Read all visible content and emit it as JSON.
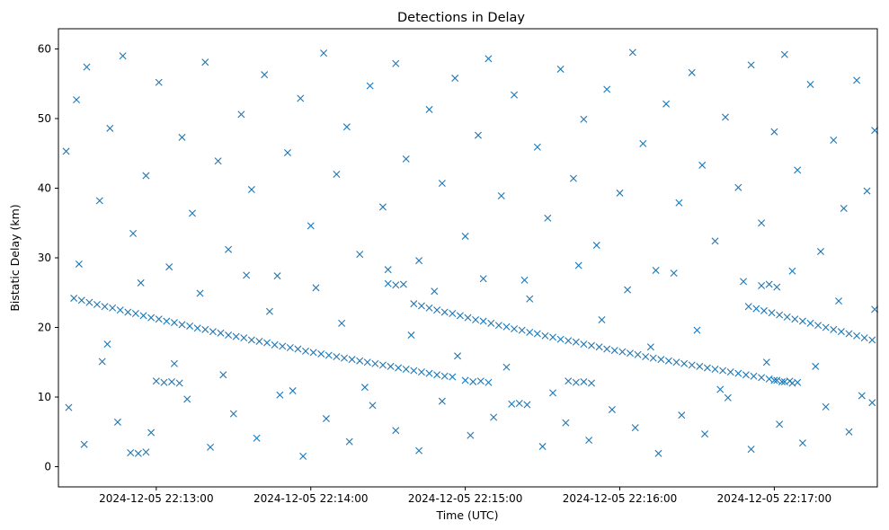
{
  "chart_data": {
    "type": "scatter",
    "title": "Detections in Delay",
    "xlabel": "Time (UTC)",
    "ylabel": "Bistatic Delay (km)",
    "marker": "x",
    "color": "#1f77b4",
    "grid": false,
    "x_axis_type": "time",
    "x_range": [
      "2024-12-05 22:12:22",
      "2024-12-05 22:17:40"
    ],
    "ylim": [
      -2.9,
      62.9
    ],
    "x_ticks": [
      "2024-12-05 22:13:00",
      "2024-12-05 22:14:00",
      "2024-12-05 22:15:00",
      "2024-12-05 22:16:00",
      "2024-12-05 22:17:00"
    ],
    "y_ticks": [
      0,
      10,
      20,
      30,
      40,
      50,
      60
    ],
    "note_on_points": "Points listed are a representative reading of the dense detection cloud; x values are times (UTC).",
    "points": [
      [
        "2024-12-05 22:12:28",
        24.2
      ],
      [
        "2024-12-05 22:12:31",
        23.9
      ],
      [
        "2024-12-05 22:12:34",
        23.6
      ],
      [
        "2024-12-05 22:12:37",
        23.3
      ],
      [
        "2024-12-05 22:12:40",
        23.0
      ],
      [
        "2024-12-05 22:12:43",
        22.8
      ],
      [
        "2024-12-05 22:12:46",
        22.5
      ],
      [
        "2024-12-05 22:12:49",
        22.2
      ],
      [
        "2024-12-05 22:12:52",
        22.0
      ],
      [
        "2024-12-05 22:12:55",
        21.7
      ],
      [
        "2024-12-05 22:12:58",
        21.4
      ],
      [
        "2024-12-05 22:13:01",
        21.2
      ],
      [
        "2024-12-05 22:13:04",
        20.9
      ],
      [
        "2024-12-05 22:13:07",
        20.7
      ],
      [
        "2024-12-05 22:13:10",
        20.4
      ],
      [
        "2024-12-05 22:13:13",
        20.2
      ],
      [
        "2024-12-05 22:13:16",
        19.9
      ],
      [
        "2024-12-05 22:13:19",
        19.7
      ],
      [
        "2024-12-05 22:13:22",
        19.4
      ],
      [
        "2024-12-05 22:13:25",
        19.2
      ],
      [
        "2024-12-05 22:13:28",
        18.9
      ],
      [
        "2024-12-05 22:13:31",
        18.7
      ],
      [
        "2024-12-05 22:13:34",
        18.5
      ],
      [
        "2024-12-05 22:13:37",
        18.2
      ],
      [
        "2024-12-05 22:13:40",
        18.0
      ],
      [
        "2024-12-05 22:13:43",
        17.8
      ],
      [
        "2024-12-05 22:13:46",
        17.5
      ],
      [
        "2024-12-05 22:13:49",
        17.3
      ],
      [
        "2024-12-05 22:13:52",
        17.1
      ],
      [
        "2024-12-05 22:13:55",
        16.9
      ],
      [
        "2024-12-05 22:13:58",
        16.6
      ],
      [
        "2024-12-05 22:14:01",
        16.4
      ],
      [
        "2024-12-05 22:14:04",
        16.2
      ],
      [
        "2024-12-05 22:14:07",
        16.0
      ],
      [
        "2024-12-05 22:14:10",
        15.8
      ],
      [
        "2024-12-05 22:14:13",
        15.6
      ],
      [
        "2024-12-05 22:14:16",
        15.4
      ],
      [
        "2024-12-05 22:14:19",
        15.2
      ],
      [
        "2024-12-05 22:14:22",
        15.0
      ],
      [
        "2024-12-05 22:14:25",
        14.8
      ],
      [
        "2024-12-05 22:14:28",
        14.6
      ],
      [
        "2024-12-05 22:14:31",
        14.4
      ],
      [
        "2024-12-05 22:14:34",
        14.2
      ],
      [
        "2024-12-05 22:14:37",
        14.0
      ],
      [
        "2024-12-05 22:14:40",
        13.8
      ],
      [
        "2024-12-05 22:14:43",
        13.6
      ],
      [
        "2024-12-05 22:14:46",
        13.4
      ],
      [
        "2024-12-05 22:14:49",
        13.2
      ],
      [
        "2024-12-05 22:14:52",
        13.0
      ],
      [
        "2024-12-05 22:14:55",
        12.9
      ],
      [
        "2024-12-05 22:14:40",
        23.4
      ],
      [
        "2024-12-05 22:14:43",
        23.1
      ],
      [
        "2024-12-05 22:14:46",
        22.8
      ],
      [
        "2024-12-05 22:14:49",
        22.5
      ],
      [
        "2024-12-05 22:14:52",
        22.2
      ],
      [
        "2024-12-05 22:14:55",
        22.0
      ],
      [
        "2024-12-05 22:14:58",
        21.7
      ],
      [
        "2024-12-05 22:15:01",
        21.4
      ],
      [
        "2024-12-05 22:15:04",
        21.1
      ],
      [
        "2024-12-05 22:15:07",
        20.9
      ],
      [
        "2024-12-05 22:15:10",
        20.6
      ],
      [
        "2024-12-05 22:15:13",
        20.3
      ],
      [
        "2024-12-05 22:15:16",
        20.1
      ],
      [
        "2024-12-05 22:15:19",
        19.8
      ],
      [
        "2024-12-05 22:15:22",
        19.6
      ],
      [
        "2024-12-05 22:15:25",
        19.3
      ],
      [
        "2024-12-05 22:15:28",
        19.1
      ],
      [
        "2024-12-05 22:15:31",
        18.8
      ],
      [
        "2024-12-05 22:15:34",
        18.6
      ],
      [
        "2024-12-05 22:15:37",
        18.3
      ],
      [
        "2024-12-05 22:15:40",
        18.1
      ],
      [
        "2024-12-05 22:15:43",
        17.9
      ],
      [
        "2024-12-05 22:15:46",
        17.6
      ],
      [
        "2024-12-05 22:15:49",
        17.4
      ],
      [
        "2024-12-05 22:15:52",
        17.2
      ],
      [
        "2024-12-05 22:15:55",
        16.9
      ],
      [
        "2024-12-05 22:15:58",
        16.7
      ],
      [
        "2024-12-05 22:16:01",
        16.5
      ],
      [
        "2024-12-05 22:16:04",
        16.3
      ],
      [
        "2024-12-05 22:16:07",
        16.1
      ],
      [
        "2024-12-05 22:16:10",
        15.8
      ],
      [
        "2024-12-05 22:16:13",
        15.6
      ],
      [
        "2024-12-05 22:16:16",
        15.4
      ],
      [
        "2024-12-05 22:16:19",
        15.2
      ],
      [
        "2024-12-05 22:16:22",
        15.0
      ],
      [
        "2024-12-05 22:16:25",
        14.8
      ],
      [
        "2024-12-05 22:16:28",
        14.6
      ],
      [
        "2024-12-05 22:16:31",
        14.4
      ],
      [
        "2024-12-05 22:16:34",
        14.2
      ],
      [
        "2024-12-05 22:16:37",
        14.0
      ],
      [
        "2024-12-05 22:16:40",
        13.8
      ],
      [
        "2024-12-05 22:16:43",
        13.6
      ],
      [
        "2024-12-05 22:16:46",
        13.4
      ],
      [
        "2024-12-05 22:16:49",
        13.2
      ],
      [
        "2024-12-05 22:16:52",
        13.0
      ],
      [
        "2024-12-05 22:16:55",
        12.8
      ],
      [
        "2024-12-05 22:16:58",
        12.6
      ],
      [
        "2024-12-05 22:17:01",
        12.4
      ],
      [
        "2024-12-05 22:17:04",
        12.2
      ],
      [
        "2024-12-05 22:17:07",
        12.0
      ],
      [
        "2024-12-05 22:16:50",
        23.0
      ],
      [
        "2024-12-05 22:16:53",
        22.7
      ],
      [
        "2024-12-05 22:16:56",
        22.4
      ],
      [
        "2024-12-05 22:16:59",
        22.1
      ],
      [
        "2024-12-05 22:17:02",
        21.8
      ],
      [
        "2024-12-05 22:17:05",
        21.5
      ],
      [
        "2024-12-05 22:17:08",
        21.2
      ],
      [
        "2024-12-05 22:17:11",
        20.9
      ],
      [
        "2024-12-05 22:17:14",
        20.6
      ],
      [
        "2024-12-05 22:17:17",
        20.3
      ],
      [
        "2024-12-05 22:17:20",
        20.0
      ],
      [
        "2024-12-05 22:17:23",
        19.7
      ],
      [
        "2024-12-05 22:17:26",
        19.4
      ],
      [
        "2024-12-05 22:17:29",
        19.1
      ],
      [
        "2024-12-05 22:17:32",
        18.8
      ],
      [
        "2024-12-05 22:17:35",
        18.5
      ],
      [
        "2024-12-05 22:17:38",
        18.2
      ],
      [
        "2024-12-05 22:13:00",
        12.3
      ],
      [
        "2024-12-05 22:13:03",
        12.1
      ],
      [
        "2024-12-05 22:13:06",
        12.2
      ],
      [
        "2024-12-05 22:13:09",
        12.0
      ],
      [
        "2024-12-05 22:15:00",
        12.4
      ],
      [
        "2024-12-05 22:15:03",
        12.2
      ],
      [
        "2024-12-05 22:15:06",
        12.3
      ],
      [
        "2024-12-05 22:15:09",
        12.1
      ],
      [
        "2024-12-05 22:15:40",
        12.3
      ],
      [
        "2024-12-05 22:15:43",
        12.1
      ],
      [
        "2024-12-05 22:15:46",
        12.2
      ],
      [
        "2024-12-05 22:15:49",
        12.0
      ],
      [
        "2024-12-05 22:17:00",
        12.4
      ],
      [
        "2024-12-05 22:17:03",
        12.2
      ],
      [
        "2024-12-05 22:17:06",
        12.3
      ],
      [
        "2024-12-05 22:17:09",
        12.1
      ],
      [
        "2024-12-05 22:16:55",
        26.0
      ],
      [
        "2024-12-05 22:16:58",
        26.2
      ],
      [
        "2024-12-05 22:17:01",
        25.8
      ],
      [
        "2024-12-05 22:14:30",
        26.3
      ],
      [
        "2024-12-05 22:14:33",
        26.1
      ],
      [
        "2024-12-05 22:14:36",
        26.2
      ],
      [
        "2024-12-05 22:12:50",
        2.0
      ],
      [
        "2024-12-05 22:12:53",
        1.9
      ],
      [
        "2024-12-05 22:12:56",
        2.1
      ],
      [
        "2024-12-05 22:15:18",
        9.0
      ],
      [
        "2024-12-05 22:15:21",
        9.1
      ],
      [
        "2024-12-05 22:15:24",
        8.9
      ],
      [
        "2024-12-05 22:12:25",
        45.3
      ],
      [
        "2024-12-05 22:12:29",
        52.7
      ],
      [
        "2024-12-05 22:12:33",
        57.4
      ],
      [
        "2024-12-05 22:12:38",
        38.2
      ],
      [
        "2024-12-05 22:12:42",
        48.6
      ],
      [
        "2024-12-05 22:12:47",
        59.0
      ],
      [
        "2024-12-05 22:12:51",
        33.5
      ],
      [
        "2024-12-05 22:12:56",
        41.8
      ],
      [
        "2024-12-05 22:13:01",
        55.2
      ],
      [
        "2024-12-05 22:13:05",
        28.7
      ],
      [
        "2024-12-05 22:13:10",
        47.3
      ],
      [
        "2024-12-05 22:13:14",
        36.4
      ],
      [
        "2024-12-05 22:13:19",
        58.1
      ],
      [
        "2024-12-05 22:13:24",
        43.9
      ],
      [
        "2024-12-05 22:13:28",
        31.2
      ],
      [
        "2024-12-05 22:13:33",
        50.6
      ],
      [
        "2024-12-05 22:13:37",
        39.8
      ],
      [
        "2024-12-05 22:13:42",
        56.3
      ],
      [
        "2024-12-05 22:13:47",
        27.4
      ],
      [
        "2024-12-05 22:13:51",
        45.1
      ],
      [
        "2024-12-05 22:13:56",
        52.9
      ],
      [
        "2024-12-05 22:14:00",
        34.6
      ],
      [
        "2024-12-05 22:14:05",
        59.4
      ],
      [
        "2024-12-05 22:14:10",
        42.0
      ],
      [
        "2024-12-05 22:14:14",
        48.8
      ],
      [
        "2024-12-05 22:14:19",
        30.5
      ],
      [
        "2024-12-05 22:14:23",
        54.7
      ],
      [
        "2024-12-05 22:14:28",
        37.3
      ],
      [
        "2024-12-05 22:14:33",
        57.9
      ],
      [
        "2024-12-05 22:14:37",
        44.2
      ],
      [
        "2024-12-05 22:14:42",
        29.6
      ],
      [
        "2024-12-05 22:14:46",
        51.3
      ],
      [
        "2024-12-05 22:14:51",
        40.7
      ],
      [
        "2024-12-05 22:14:56",
        55.8
      ],
      [
        "2024-12-05 22:15:00",
        33.1
      ],
      [
        "2024-12-05 22:15:05",
        47.6
      ],
      [
        "2024-12-05 22:15:09",
        58.6
      ],
      [
        "2024-12-05 22:15:14",
        38.9
      ],
      [
        "2024-12-05 22:15:19",
        53.4
      ],
      [
        "2024-12-05 22:15:23",
        26.8
      ],
      [
        "2024-12-05 22:15:28",
        45.9
      ],
      [
        "2024-12-05 22:15:32",
        35.7
      ],
      [
        "2024-12-05 22:15:37",
        57.1
      ],
      [
        "2024-12-05 22:15:42",
        41.4
      ],
      [
        "2024-12-05 22:15:46",
        49.9
      ],
      [
        "2024-12-05 22:15:51",
        31.8
      ],
      [
        "2024-12-05 22:15:55",
        54.2
      ],
      [
        "2024-12-05 22:16:00",
        39.3
      ],
      [
        "2024-12-05 22:16:05",
        59.5
      ],
      [
        "2024-12-05 22:16:09",
        46.4
      ],
      [
        "2024-12-05 22:16:14",
        28.2
      ],
      [
        "2024-12-05 22:16:18",
        52.1
      ],
      [
        "2024-12-05 22:16:23",
        37.9
      ],
      [
        "2024-12-05 22:16:28",
        56.6
      ],
      [
        "2024-12-05 22:16:32",
        43.3
      ],
      [
        "2024-12-05 22:16:37",
        32.4
      ],
      [
        "2024-12-05 22:16:41",
        50.2
      ],
      [
        "2024-12-05 22:16:46",
        40.1
      ],
      [
        "2024-12-05 22:16:51",
        57.7
      ],
      [
        "2024-12-05 22:16:55",
        35.0
      ],
      [
        "2024-12-05 22:17:00",
        48.1
      ],
      [
        "2024-12-05 22:17:04",
        59.2
      ],
      [
        "2024-12-05 22:17:09",
        42.6
      ],
      [
        "2024-12-05 22:17:14",
        54.9
      ],
      [
        "2024-12-05 22:17:18",
        30.9
      ],
      [
        "2024-12-05 22:17:23",
        46.9
      ],
      [
        "2024-12-05 22:17:27",
        37.1
      ],
      [
        "2024-12-05 22:17:32",
        55.5
      ],
      [
        "2024-12-05 22:17:36",
        39.6
      ],
      [
        "2024-12-05 22:17:39",
        48.3
      ],
      [
        "2024-12-05 22:12:26",
        8.5
      ],
      [
        "2024-12-05 22:12:32",
        3.2
      ],
      [
        "2024-12-05 22:12:39",
        15.1
      ],
      [
        "2024-12-05 22:12:45",
        6.4
      ],
      [
        "2024-12-05 22:12:58",
        4.9
      ],
      [
        "2024-12-05 22:13:12",
        9.7
      ],
      [
        "2024-12-05 22:13:21",
        2.8
      ],
      [
        "2024-12-05 22:13:30",
        7.6
      ],
      [
        "2024-12-05 22:13:39",
        4.1
      ],
      [
        "2024-12-05 22:13:48",
        10.3
      ],
      [
        "2024-12-05 22:13:57",
        1.5
      ],
      [
        "2024-12-05 22:14:06",
        6.9
      ],
      [
        "2024-12-05 22:14:15",
        3.6
      ],
      [
        "2024-12-05 22:14:24",
        8.8
      ],
      [
        "2024-12-05 22:14:33",
        5.2
      ],
      [
        "2024-12-05 22:14:42",
        2.3
      ],
      [
        "2024-12-05 22:14:51",
        9.4
      ],
      [
        "2024-12-05 22:15:02",
        4.5
      ],
      [
        "2024-12-05 22:15:11",
        7.1
      ],
      [
        "2024-12-05 22:15:30",
        2.9
      ],
      [
        "2024-12-05 22:15:39",
        6.3
      ],
      [
        "2024-12-05 22:15:48",
        3.8
      ],
      [
        "2024-12-05 22:15:57",
        8.2
      ],
      [
        "2024-12-05 22:16:06",
        5.6
      ],
      [
        "2024-12-05 22:16:15",
        1.9
      ],
      [
        "2024-12-05 22:16:24",
        7.4
      ],
      [
        "2024-12-05 22:16:33",
        4.7
      ],
      [
        "2024-12-05 22:16:42",
        9.9
      ],
      [
        "2024-12-05 22:16:51",
        2.5
      ],
      [
        "2024-12-05 22:17:02",
        6.1
      ],
      [
        "2024-12-05 22:17:11",
        3.4
      ],
      [
        "2024-12-05 22:17:20",
        8.6
      ],
      [
        "2024-12-05 22:17:29",
        5.0
      ],
      [
        "2024-12-05 22:17:38",
        9.2
      ],
      [
        "2024-12-05 22:12:30",
        29.1
      ],
      [
        "2024-12-05 22:12:41",
        17.6
      ],
      [
        "2024-12-05 22:12:54",
        26.4
      ],
      [
        "2024-12-05 22:13:07",
        14.8
      ],
      [
        "2024-12-05 22:13:17",
        24.9
      ],
      [
        "2024-12-05 22:13:26",
        13.2
      ],
      [
        "2024-12-05 22:13:35",
        27.5
      ],
      [
        "2024-12-05 22:13:44",
        22.3
      ],
      [
        "2024-12-05 22:13:53",
        10.9
      ],
      [
        "2024-12-05 22:14:02",
        25.7
      ],
      [
        "2024-12-05 22:14:12",
        20.6
      ],
      [
        "2024-12-05 22:14:21",
        11.4
      ],
      [
        "2024-12-05 22:14:30",
        28.3
      ],
      [
        "2024-12-05 22:14:39",
        18.9
      ],
      [
        "2024-12-05 22:14:48",
        25.2
      ],
      [
        "2024-12-05 22:14:57",
        15.9
      ],
      [
        "2024-12-05 22:15:07",
        27.0
      ],
      [
        "2024-12-05 22:15:16",
        14.3
      ],
      [
        "2024-12-05 22:15:25",
        24.1
      ],
      [
        "2024-12-05 22:15:34",
        10.6
      ],
      [
        "2024-12-05 22:15:44",
        28.9
      ],
      [
        "2024-12-05 22:15:53",
        21.1
      ],
      [
        "2024-12-05 22:16:03",
        25.4
      ],
      [
        "2024-12-05 22:16:12",
        17.2
      ],
      [
        "2024-12-05 22:16:21",
        27.8
      ],
      [
        "2024-12-05 22:16:30",
        19.6
      ],
      [
        "2024-12-05 22:16:39",
        11.1
      ],
      [
        "2024-12-05 22:16:48",
        26.6
      ],
      [
        "2024-12-05 22:16:57",
        15.0
      ],
      [
        "2024-12-05 22:17:07",
        28.1
      ],
      [
        "2024-12-05 22:17:16",
        14.4
      ],
      [
        "2024-12-05 22:17:25",
        23.8
      ],
      [
        "2024-12-05 22:17:34",
        10.2
      ],
      [
        "2024-12-05 22:17:39",
        22.6
      ]
    ]
  }
}
